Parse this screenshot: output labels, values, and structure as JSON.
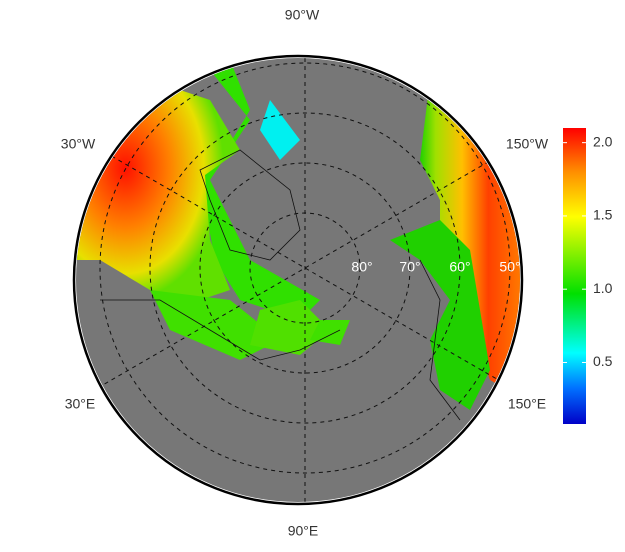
{
  "map": {
    "longitude_labels": [
      "90°W",
      "30°W",
      "150°W",
      "30°E",
      "150°E",
      "90°E"
    ],
    "latitude_labels": [
      "80°",
      "70°",
      "60°",
      "50°"
    ]
  },
  "colorbar": {
    "lim": [
      0.08,
      2.1
    ],
    "ticks": [
      0.5,
      {
        "value": 1,
        "label": "1.0"
      },
      1.5,
      {
        "value": 2,
        "label": "2.0"
      }
    ]
  }
}
